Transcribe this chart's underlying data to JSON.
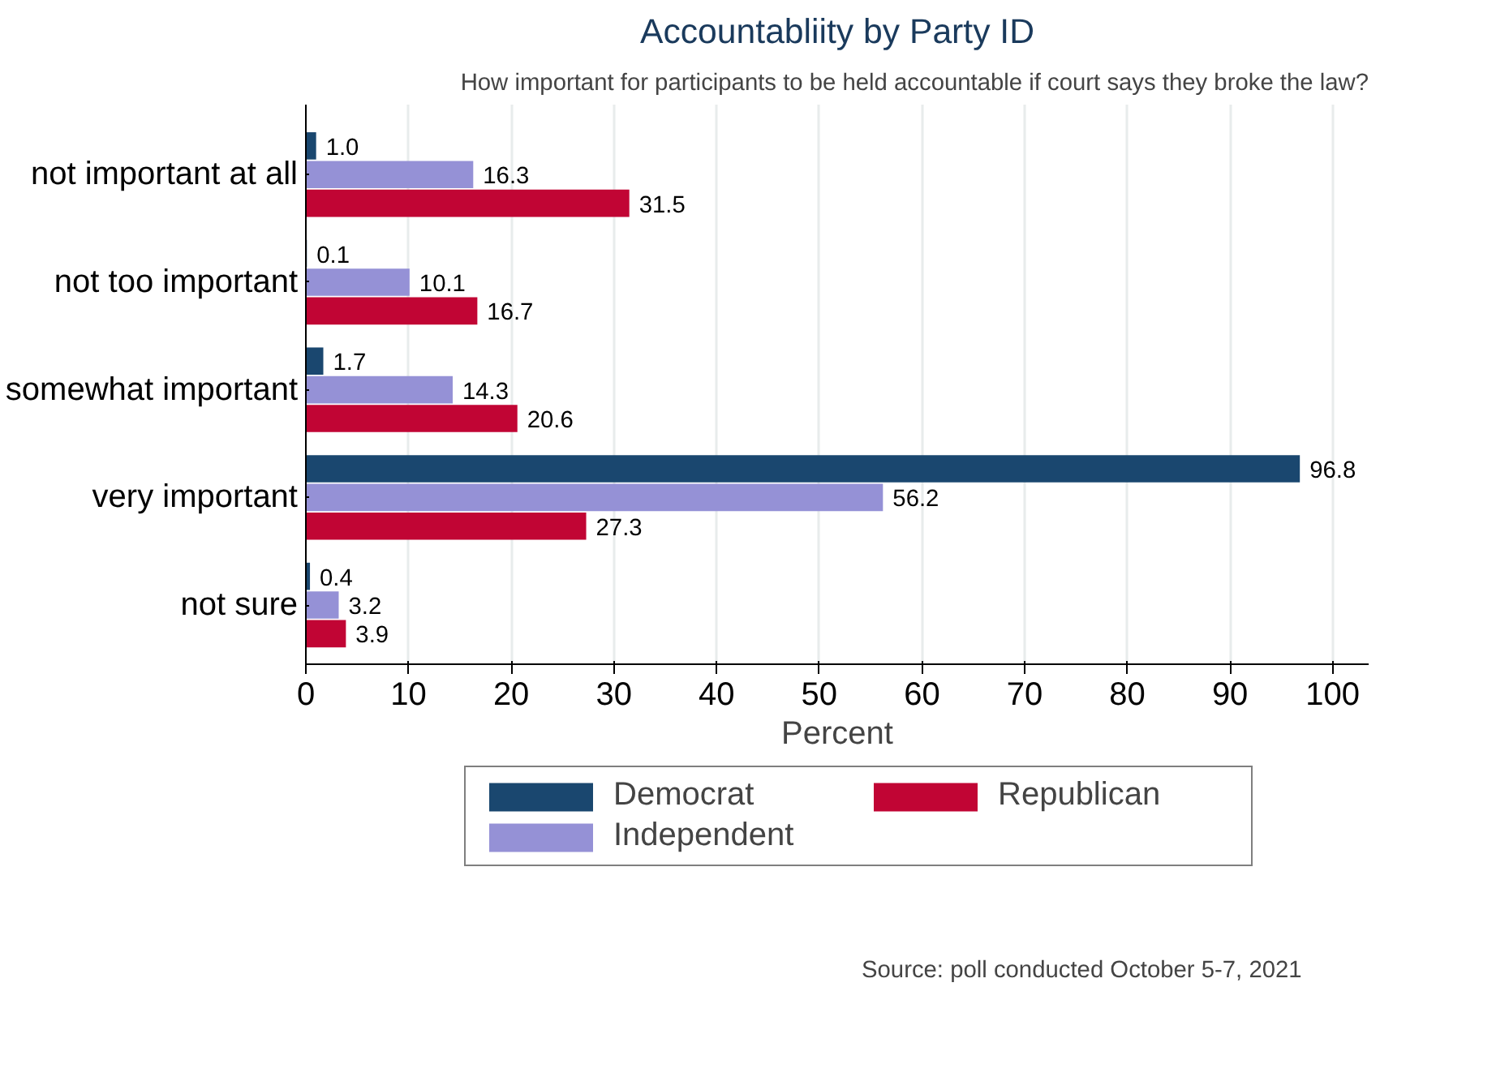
{
  "chart_data": {
    "type": "bar",
    "orientation": "horizontal",
    "title": "Accountabliity by Party ID",
    "subtitle": "How important for participants to be held accountable if court says they broke the law?",
    "xlabel": "Percent",
    "categories": [
      "not important at all",
      "not too important",
      "somewhat important",
      "very important",
      "not sure"
    ],
    "series": [
      {
        "name": "Democrat",
        "color": "#1a476f",
        "values": [
          1.0,
          0.1,
          1.7,
          96.8,
          0.4
        ],
        "value_labels": [
          "1.0",
          "0.1",
          "1.7",
          "96.8",
          "0.4"
        ]
      },
      {
        "name": "Independent",
        "color": "#9591d6",
        "values": [
          16.3,
          10.1,
          14.3,
          56.2,
          3.2
        ]
      },
      {
        "name": "Republican",
        "color": "#c10534",
        "values": [
          31.5,
          16.7,
          20.6,
          27.3,
          3.9
        ]
      }
    ],
    "xlim": [
      0,
      103.5
    ],
    "xticks": [
      0,
      10,
      20,
      30,
      40,
      50,
      60,
      70,
      80,
      90,
      100
    ],
    "data_labels": true,
    "grid": "x",
    "legend": "bottom",
    "annotations": [
      "Source: poll conducted October 5-7, 2021"
    ]
  }
}
